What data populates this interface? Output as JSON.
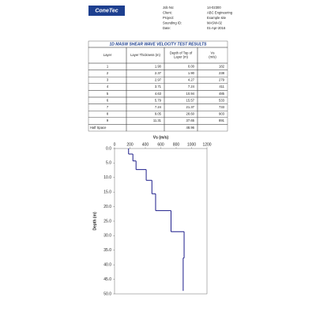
{
  "header": {
    "logo": "ConeTec",
    "fields": [
      {
        "label": "Job No:",
        "value": "14-02300"
      },
      {
        "label": "Client:",
        "value": "ABC Engineering"
      },
      {
        "label": "Project:",
        "value": "Example site"
      },
      {
        "label": "Sounding ID:",
        "value": "MASW-02"
      },
      {
        "label": "Date:",
        "value": "01-Apr-2016"
      }
    ]
  },
  "table": {
    "title": "1D MASW SHEAR WAVE VELOCITY TEST RESULTS",
    "columns": [
      [
        "Layer"
      ],
      [
        "Layer Thickness (m)"
      ],
      [
        "Depth of Top of",
        "Layer (m)"
      ],
      [
        "Vs",
        "(m/s)"
      ]
    ],
    "rows": [
      [
        "1",
        "1.90",
        "0.00",
        "182"
      ],
      [
        "2",
        "2.37",
        "1.90",
        "238"
      ],
      [
        "3",
        "2.97",
        "4.27",
        "279"
      ],
      [
        "4",
        "3.71",
        "7.24",
        "411"
      ],
      [
        "5",
        "4.63",
        "10.94",
        "485"
      ],
      [
        "6",
        "5.79",
        "15.57",
        "533"
      ],
      [
        "7",
        "7.24",
        "21.37",
        "733"
      ],
      [
        "8",
        "9.05",
        "28.60",
        "903"
      ],
      [
        "9",
        "11.31",
        "37.65",
        "891"
      ]
    ],
    "half_space": {
      "label": "Half Space",
      "depth": "48.96"
    }
  },
  "chart_data": {
    "type": "step",
    "x_label": "Vs (m/s)",
    "y_label": "Depth (m)",
    "vs": [
      182,
      238,
      279,
      411,
      485,
      533,
      733,
      903,
      891
    ],
    "depth_edges": [
      0,
      1.9,
      4.27,
      7.24,
      10.94,
      15.57,
      21.37,
      28.6,
      37.65,
      48.96
    ],
    "color": "#1c1c8a",
    "xlim": [
      0,
      1200
    ],
    "xticks": [
      0,
      200,
      400,
      600,
      800,
      1000,
      1200
    ],
    "ylim": [
      0,
      50
    ],
    "yticks": [
      {
        "value": 0,
        "label": "0.0"
      },
      {
        "value": 5,
        "label": "5.0"
      },
      {
        "value": 10,
        "label": "10.0"
      },
      {
        "value": 15,
        "label": "15.0"
      },
      {
        "value": 20,
        "label": "20.0"
      },
      {
        "value": 25,
        "label": "25.0"
      },
      {
        "value": 30,
        "label": "30.0"
      },
      {
        "value": 35,
        "label": "35.0"
      },
      {
        "value": 40,
        "label": "40.0"
      },
      {
        "value": 45,
        "label": "45.0"
      },
      {
        "value": 50,
        "label": "50.0"
      }
    ]
  }
}
